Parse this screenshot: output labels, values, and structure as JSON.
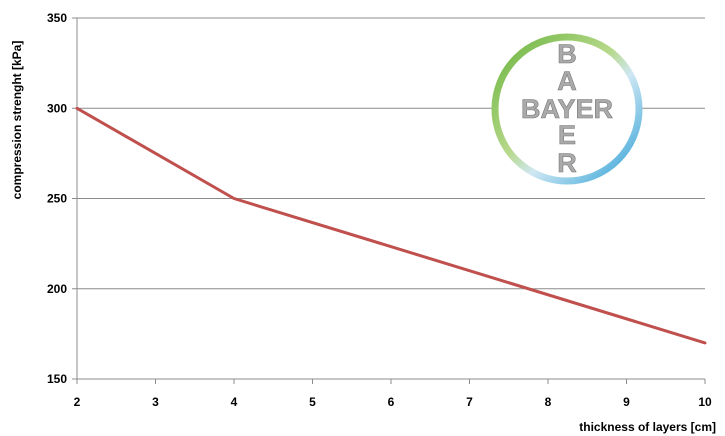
{
  "chart_data": {
    "type": "line",
    "title": "",
    "xlabel": "thickness  of layers [cm]",
    "ylabel": "compression strenght [kPa]",
    "x": [
      2,
      4,
      10
    ],
    "series": [
      {
        "values": [
          300,
          250,
          170
        ],
        "color": "#c0504d"
      }
    ],
    "xlim": [
      2,
      10
    ],
    "ylim": [
      150,
      350
    ],
    "xticks": [
      2,
      3,
      4,
      5,
      6,
      7,
      8,
      9,
      10
    ],
    "yticks": [
      150,
      200,
      250,
      300,
      350
    ],
    "grid": "horizontal",
    "legend": "none"
  },
  "logo": {
    "brand": "BAYER",
    "ring_colors": [
      "#6ab43e",
      "#2a9fd6"
    ],
    "text_color": "#aaaaaa"
  }
}
